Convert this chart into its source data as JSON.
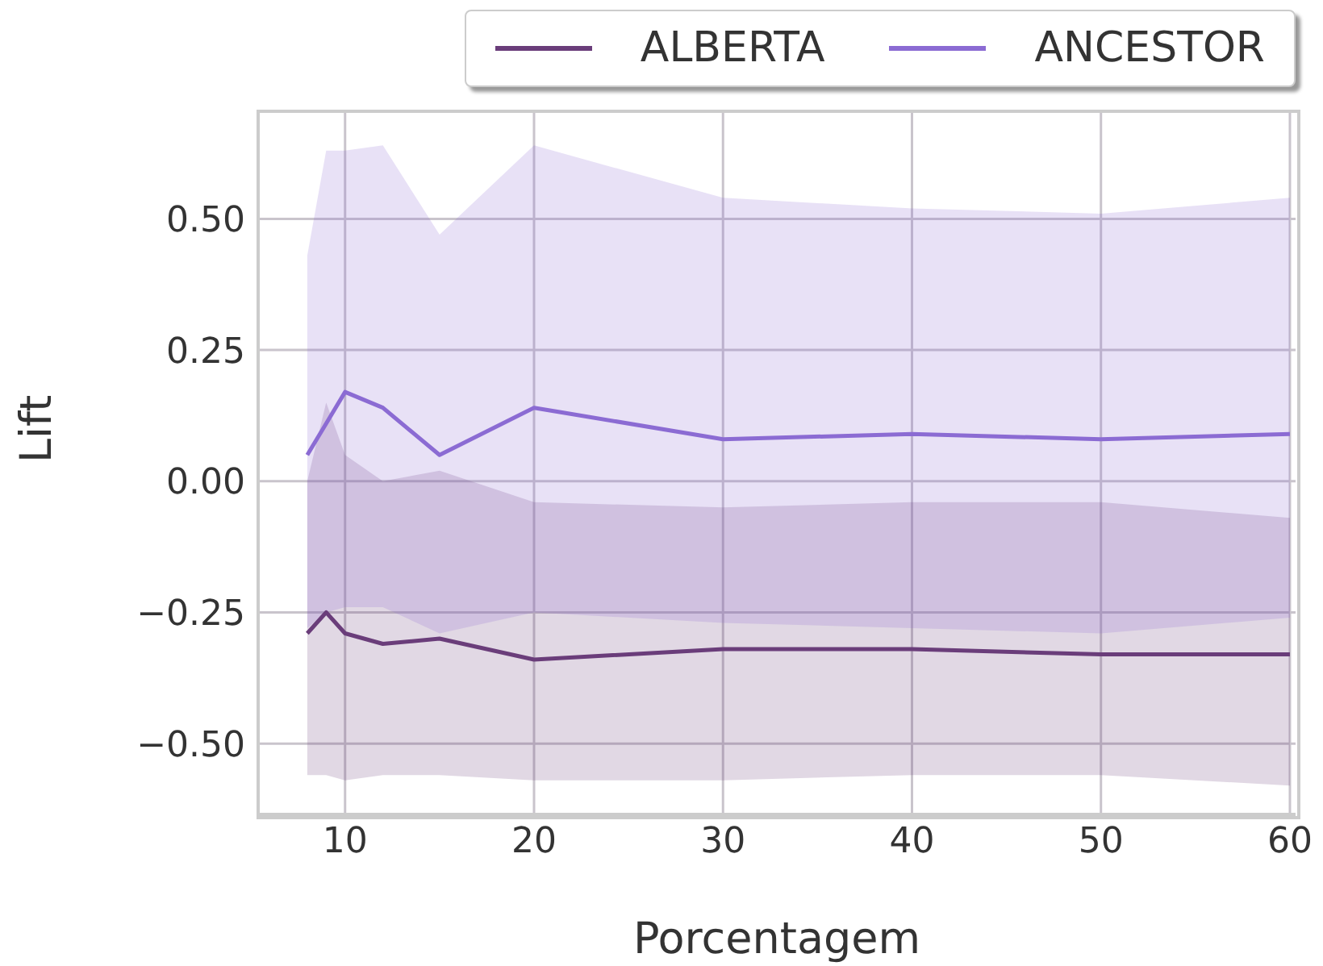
{
  "chart_data": {
    "type": "line",
    "xlabel": "Porcentagem",
    "ylabel": "Lift",
    "x": [
      8,
      9,
      10,
      12,
      15,
      20,
      30,
      40,
      50,
      60
    ],
    "series": [
      {
        "name": "ALBERTA",
        "color": "#6a3d7a",
        "values": [
          -0.29,
          -0.25,
          -0.29,
          -0.31,
          -0.3,
          -0.34,
          -0.32,
          -0.32,
          -0.33,
          -0.33
        ],
        "lower": [
          -0.56,
          -0.56,
          -0.57,
          -0.56,
          -0.56,
          -0.57,
          -0.57,
          -0.56,
          -0.56,
          -0.58
        ],
        "upper": [
          0.0,
          0.15,
          0.05,
          0.0,
          0.02,
          -0.04,
          -0.05,
          -0.04,
          -0.04,
          -0.07
        ]
      },
      {
        "name": "ANCESTOR",
        "color": "#8b6bd3",
        "values": [
          0.05,
          0.11,
          0.17,
          0.14,
          0.05,
          0.14,
          0.08,
          0.09,
          0.08,
          0.09
        ],
        "lower": [
          -0.28,
          -0.25,
          -0.24,
          -0.24,
          -0.29,
          -0.25,
          -0.27,
          -0.28,
          -0.29,
          -0.26
        ],
        "upper": [
          0.43,
          0.63,
          0.63,
          0.64,
          0.47,
          0.64,
          0.54,
          0.52,
          0.51,
          0.54
        ]
      }
    ],
    "xlim": [
      5.4,
      60.3
    ],
    "xticks": [
      10,
      20,
      30,
      40,
      50,
      60
    ],
    "ylim": [
      -0.635,
      0.705
    ],
    "yticks": [
      {
        "value": -0.5,
        "label": "−0.50"
      },
      {
        "value": -0.25,
        "label": "−0.25"
      },
      {
        "value": 0,
        "label": "0.00"
      },
      {
        "value": 0.25,
        "label": "0.25"
      },
      {
        "value": 0.5,
        "label": "0.50"
      }
    ],
    "grid": true,
    "legend": "top right",
    "marker": "none",
    "line_style": "solid"
  }
}
